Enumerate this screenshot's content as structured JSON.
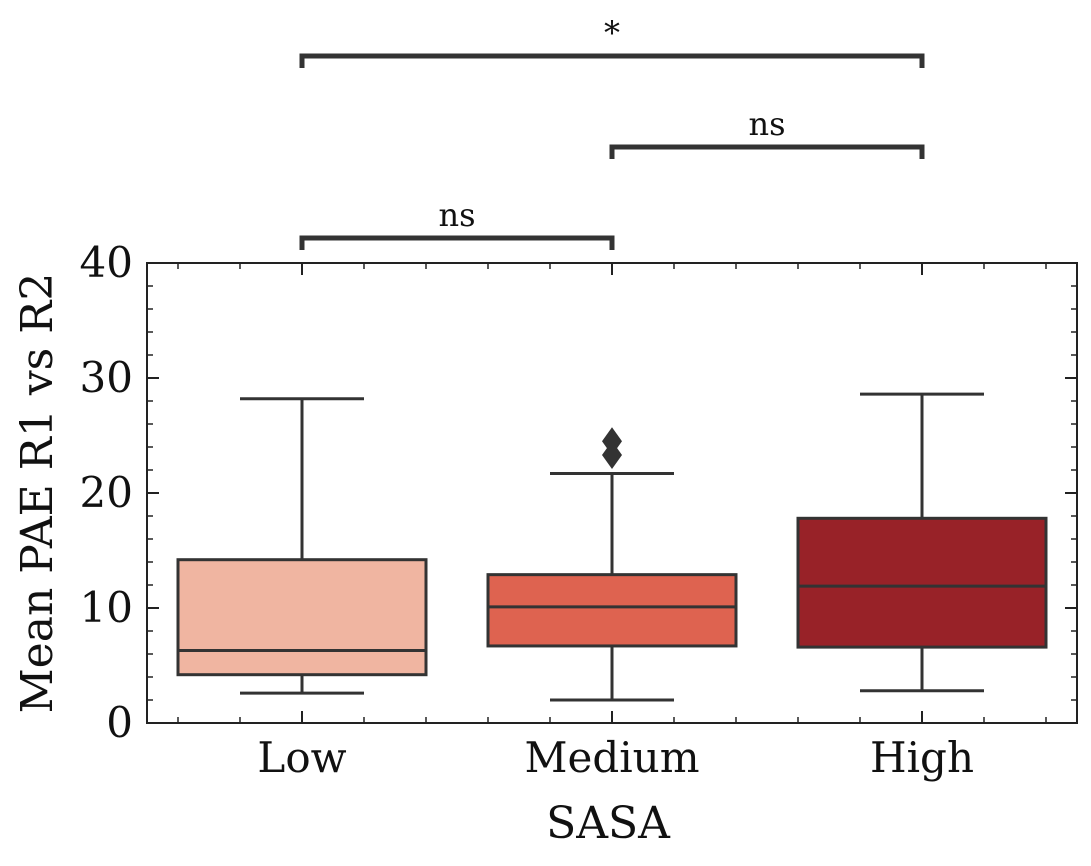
{
  "chart_data": {
    "type": "box",
    "xlabel": "SASA",
    "ylabel": "Mean PAE R1 vs R2",
    "ylim": [
      0,
      40
    ],
    "yticks": [
      0,
      10,
      20,
      30,
      40
    ],
    "categories": [
      "Low",
      "Medium",
      "High"
    ],
    "boxes": [
      {
        "category": "Low",
        "whisker_low": 2.6,
        "q1": 4.2,
        "median": 6.3,
        "q3": 14.2,
        "whisker_high": 28.2,
        "outliers": [],
        "color": "#f0b5a1"
      },
      {
        "category": "Medium",
        "whisker_low": 2.0,
        "q1": 6.7,
        "median": 10.1,
        "q3": 12.9,
        "whisker_high": 21.7,
        "outliers": [
          23.3,
          24.5
        ],
        "color": "#de6350"
      },
      {
        "category": "High",
        "whisker_low": 2.8,
        "q1": 6.6,
        "median": 11.9,
        "q3": 17.8,
        "whisker_high": 28.6,
        "outliers": [],
        "color": "#982228"
      }
    ],
    "annotations": [
      {
        "from": "Low",
        "to": "Medium",
        "label": "ns"
      },
      {
        "from": "Medium",
        "to": "High",
        "label": "ns"
      },
      {
        "from": "Low",
        "to": "High",
        "label": "*"
      }
    ],
    "grid": false,
    "line_color": "#333333"
  }
}
